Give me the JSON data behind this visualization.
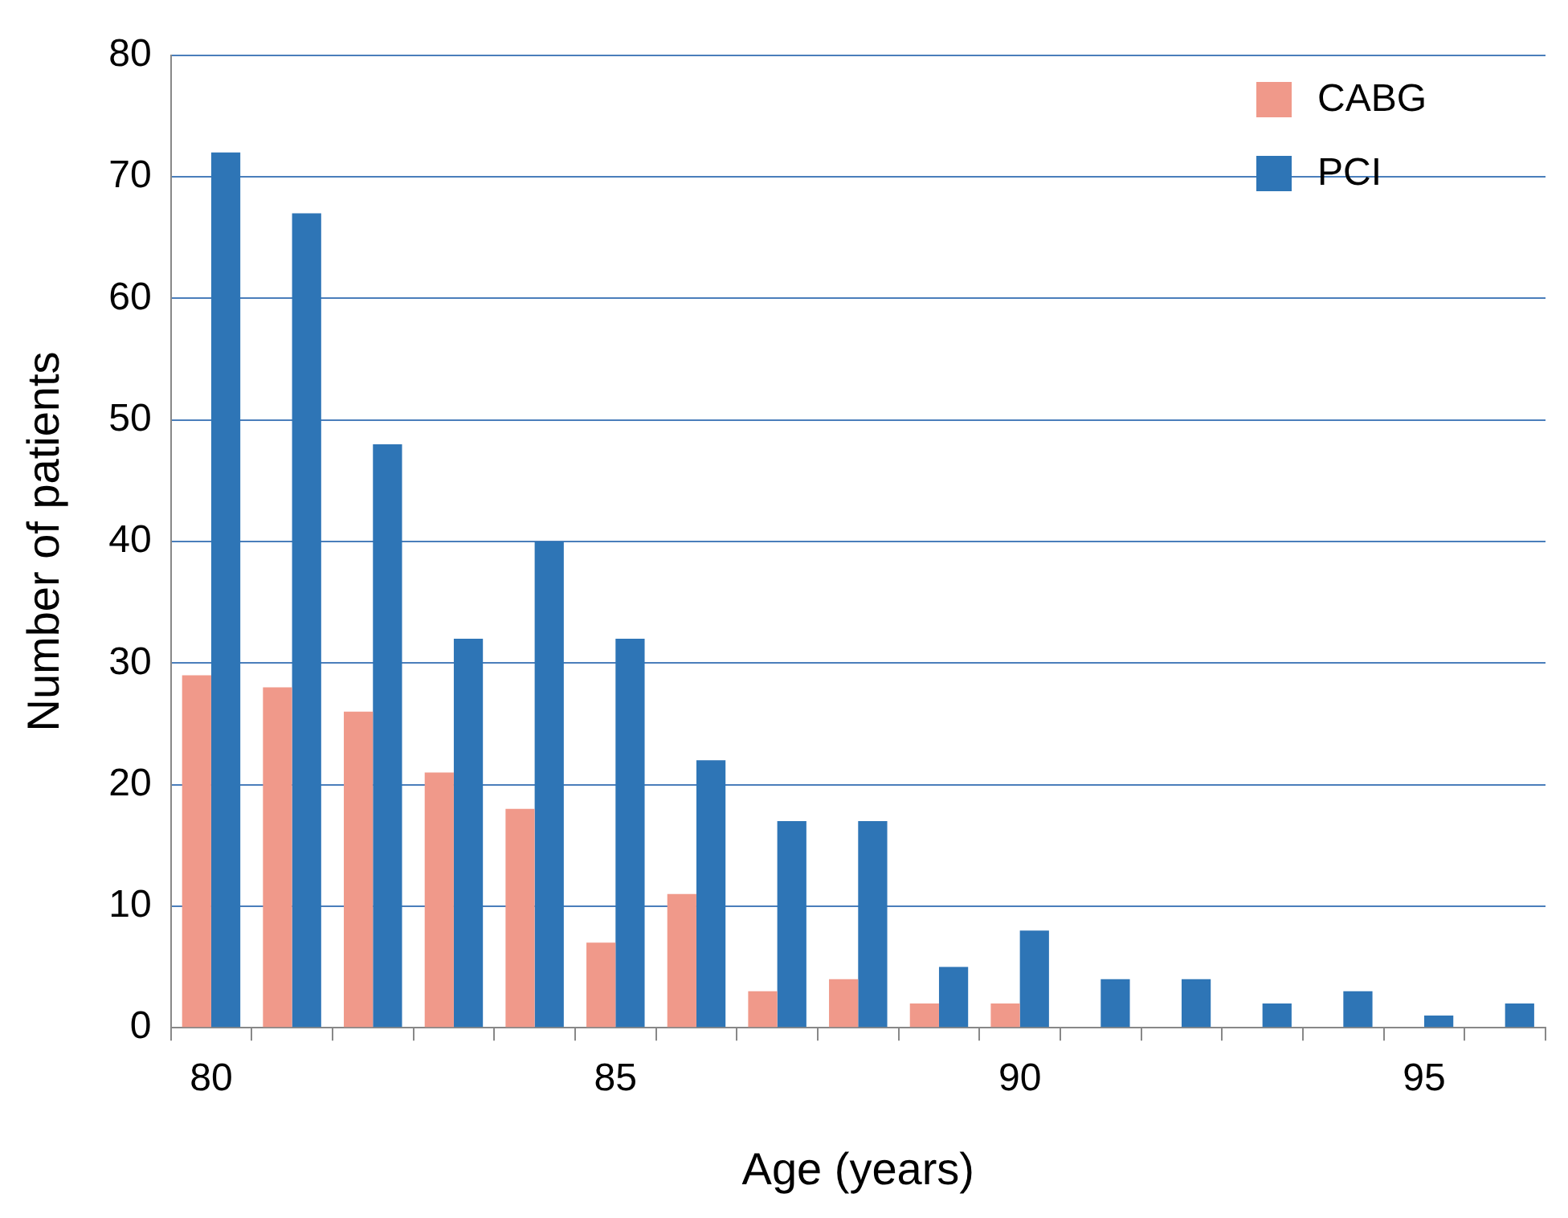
{
  "chart_data": {
    "type": "bar",
    "xlabel": "Age (years)",
    "ylabel": "Number of patients",
    "categories": [
      "80",
      null,
      null,
      null,
      null,
      "85",
      null,
      null,
      null,
      null,
      "90",
      null,
      null,
      null,
      null,
      "95",
      null
    ],
    "series": [
      {
        "name": "CABG",
        "color": "#f0998a",
        "values": [
          29,
          28,
          26,
          21,
          18,
          7,
          11,
          3,
          4,
          2,
          2,
          0,
          0,
          0,
          0,
          0,
          0
        ]
      },
      {
        "name": "PCI",
        "color": "#2e75b6",
        "values": [
          72,
          67,
          48,
          32,
          40,
          32,
          22,
          17,
          17,
          5,
          8,
          4,
          4,
          2,
          3,
          1,
          2
        ]
      }
    ],
    "ylim": [
      0,
      80
    ],
    "yticks": [
      0,
      10,
      20,
      30,
      40,
      50,
      60,
      70,
      80
    ],
    "grid": "y",
    "legend": "top right"
  }
}
